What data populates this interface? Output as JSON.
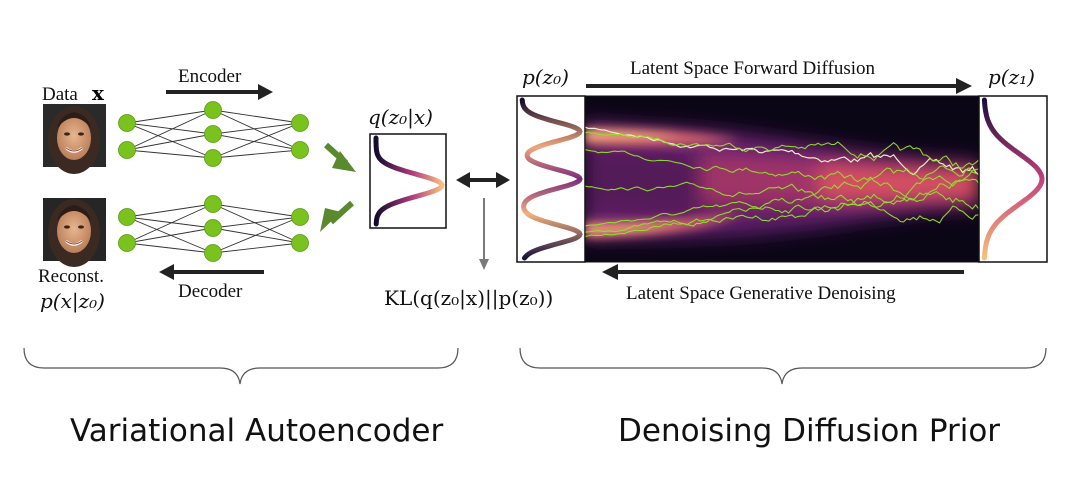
{
  "vae": {
    "data_label": "Data",
    "data_symbol": "x",
    "encoder_label": "Encoder",
    "decoder_label": "Decoder",
    "reconst_label": "Reconst.",
    "reconst_math": "p(x|z₀)",
    "posterior_math": "q(z₀|x)",
    "section_title": "Variational Autoencoder"
  },
  "kl": {
    "label": "KL(q(z₀|x)||p(z₀))"
  },
  "diffusion": {
    "prior_left_math": "p(z₀)",
    "prior_right_math": "p(z₁)",
    "forward_label": "Latent Space Forward Diffusion",
    "reverse_label": "Latent Space Generative Denoising",
    "section_title": "Denoising Diffusion Prior"
  },
  "colors": {
    "node": "#7ac21d",
    "node_edge": "#5a9a10",
    "arrow_green": "#5b8a2e",
    "arrow_dark": "#222222",
    "arrow_gray": "#7a7a7a",
    "trajectory": "#8fe02a",
    "trajectory_light": "#f4f4d6"
  },
  "icons": {
    "face_input": "face-photo-icon",
    "face_output": "face-photo-icon"
  }
}
